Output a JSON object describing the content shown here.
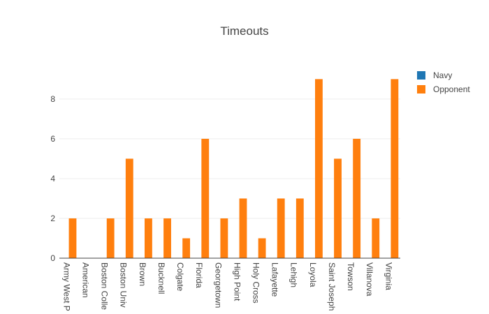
{
  "chart_data": {
    "type": "bar",
    "title": "Timeouts",
    "xlabel": "",
    "ylabel": "",
    "categories": [
      "Army West P",
      "American",
      "Boston Colle",
      "Boston Univ",
      "Brown",
      "Bucknell",
      "Colgate",
      "Florida",
      "Georgetown",
      "High Point",
      "Holy Cross",
      "Lafayette",
      "Lehigh",
      "Loyola",
      "Saint Joseph",
      "Towson",
      "Villanova",
      "Virginia"
    ],
    "series": [
      {
        "name": "Navy",
        "color": "#1f77b4",
        "values": [
          0,
          0,
          0,
          0,
          0,
          0,
          0,
          0,
          0,
          0,
          0,
          0,
          0,
          0,
          0,
          0,
          0,
          0
        ]
      },
      {
        "name": "Opponent",
        "color": "#ff7f0e",
        "values": [
          2,
          0,
          2,
          5,
          2,
          2,
          1,
          6,
          2,
          3,
          1,
          3,
          3,
          9,
          5,
          6,
          2,
          9
        ]
      }
    ],
    "ylim": [
      0,
      9.47
    ],
    "yticks": [
      0,
      2,
      4,
      6,
      8
    ],
    "grid": true,
    "legend": "top-right"
  }
}
